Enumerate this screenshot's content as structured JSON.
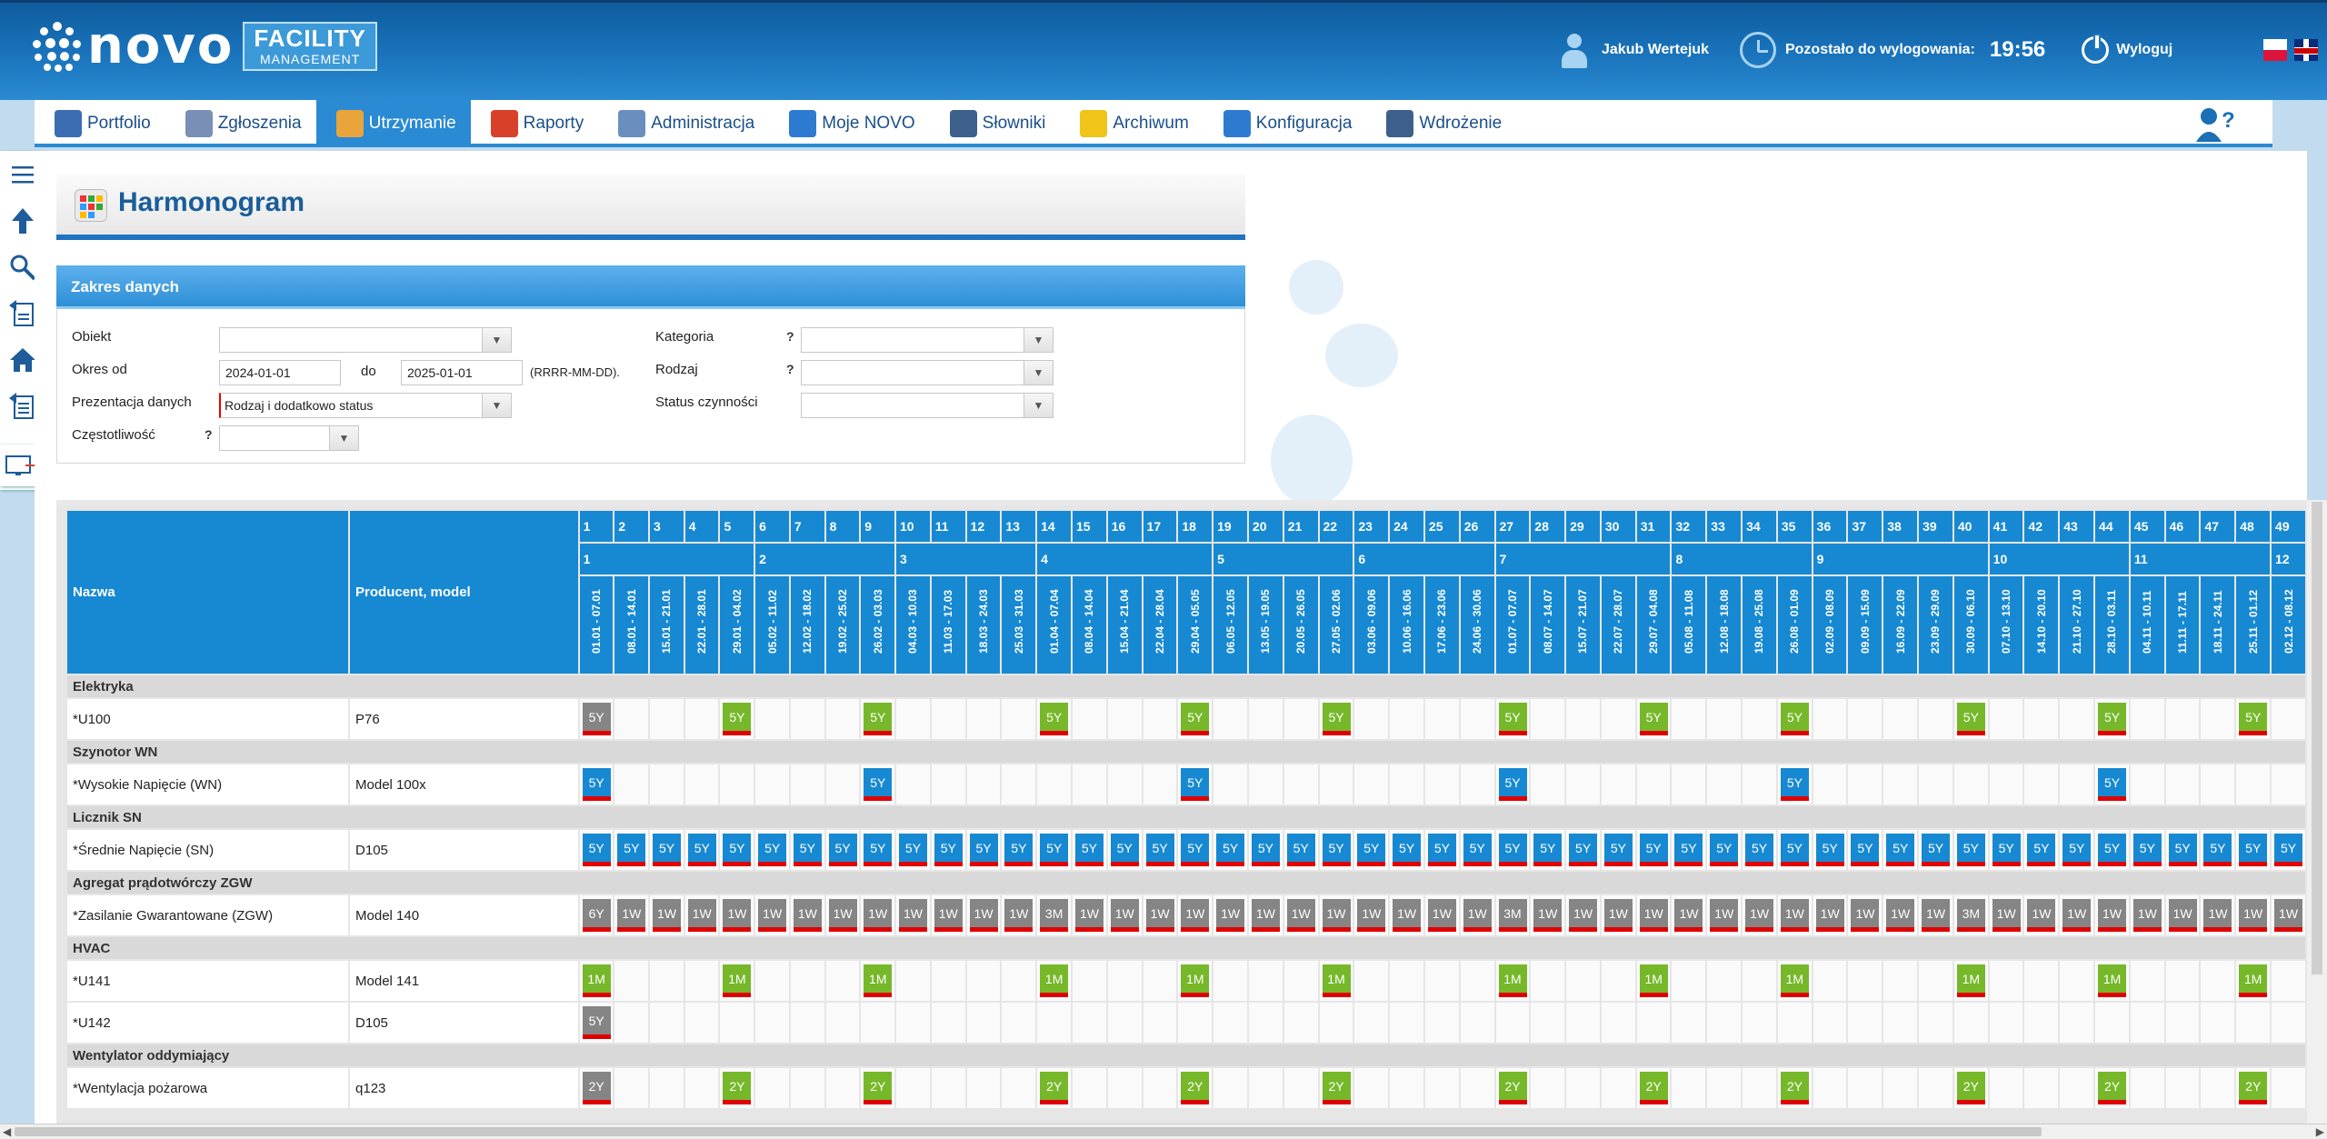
{
  "header": {
    "logo_text": "novo",
    "logo_badge_line1": "FACILITY",
    "logo_badge_line2": "MANAGEMENT",
    "user_name": "Jakub Wertejuk",
    "session_label": "Pozostało do wylogowania:",
    "session_time": "19:56",
    "logout_label": "Wyloguj"
  },
  "nav": {
    "items": [
      {
        "label": "Portfolio",
        "icon": "building-icon",
        "color": "#3b6db3"
      },
      {
        "label": "Zgłoszenia",
        "icon": "report-form-icon",
        "color": "#7a8fb5"
      },
      {
        "label": "Utrzymanie",
        "icon": "maintenance-icon",
        "color": "#e9a43b"
      },
      {
        "label": "Raporty",
        "icon": "pie-chart-icon",
        "color": "#d9402a"
      },
      {
        "label": "Administracja",
        "icon": "admin-user-icon",
        "color": "#6a8fbf"
      },
      {
        "label": "Moje NOVO",
        "icon": "gears-icon",
        "color": "#2d7bd1"
      },
      {
        "label": "Słowniki",
        "icon": "dictionary-search-icon",
        "color": "#3d5f8c"
      },
      {
        "label": "Archiwum",
        "icon": "folder-icon",
        "color": "#f0c419"
      },
      {
        "label": "Konfiguracja",
        "icon": "gears-icon",
        "color": "#2d7bd1"
      },
      {
        "label": "Wdrożenie",
        "icon": "checklist-icon",
        "color": "#3d5f8c"
      }
    ],
    "active_index": 2
  },
  "page": {
    "title": "Harmonogram"
  },
  "filters": {
    "section_title": "Zakres danych",
    "obiekt_label": "Obiekt",
    "obiekt_value": "",
    "okres_label": "Okres od",
    "okres_from": "2024-01-01",
    "do_label": "do",
    "okres_to": "2025-01-01",
    "date_format_hint": "(RRRR-MM-DD).",
    "prezentacja_label": "Prezentacja danych",
    "prezentacja_value": "Rodzaj i dodatkowo status",
    "czestotliwosc_label": "Częstotliwość",
    "kategoria_label": "Kategoria",
    "kategoria_value": "",
    "rodzaj_label": "Rodzaj",
    "rodzaj_value": "",
    "status_label": "Status czynności",
    "status_value": "",
    "czestotliwosc_value": "",
    "question_mark": "?"
  },
  "schedule": {
    "col_name": "Nazwa",
    "col_model": "Producent, model",
    "weeks": [
      "1",
      "2",
      "3",
      "4",
      "5",
      "6",
      "7",
      "8",
      "9",
      "10",
      "11",
      "12",
      "13",
      "14",
      "15",
      "16",
      "17",
      "18",
      "19",
      "20",
      "21",
      "22",
      "23",
      "24",
      "25",
      "26",
      "27",
      "28",
      "29",
      "30",
      "31",
      "32",
      "33",
      "34",
      "35",
      "36",
      "37",
      "38",
      "39",
      "40",
      "41",
      "42",
      "43",
      "44",
      "45",
      "46",
      "47",
      "48",
      "49"
    ],
    "months": [
      {
        "label": "1",
        "span": 5
      },
      {
        "label": "2",
        "span": 4
      },
      {
        "label": "3",
        "span": 4
      },
      {
        "label": "4",
        "span": 5
      },
      {
        "label": "5",
        "span": 4
      },
      {
        "label": "6",
        "span": 4
      },
      {
        "label": "7",
        "span": 5
      },
      {
        "label": "8",
        "span": 4
      },
      {
        "label": "9",
        "span": 5
      },
      {
        "label": "10",
        "span": 4
      },
      {
        "label": "11",
        "span": 4
      },
      {
        "label": "12",
        "span": 1
      }
    ],
    "dates": [
      "01.01 - 07.01",
      "08.01 - 14.01",
      "15.01 - 21.01",
      "22.01 - 28.01",
      "29.01 - 04.02",
      "05.02 - 11.02",
      "12.02 - 18.02",
      "19.02 - 25.02",
      "26.02 - 03.03",
      "04.03 - 10.03",
      "11.03 - 17.03",
      "18.03 - 24.03",
      "25.03 - 31.03",
      "01.04 - 07.04",
      "08.04 - 14.04",
      "15.04 - 21.04",
      "22.04 - 28.04",
      "29.04 - 05.05",
      "06.05 - 12.05",
      "13.05 - 19.05",
      "20.05 - 26.05",
      "27.05 - 02.06",
      "03.06 - 09.06",
      "10.06 - 16.06",
      "17.06 - 23.06",
      "24.06 - 30.06",
      "01.07 - 07.07",
      "08.07 - 14.07",
      "15.07 - 21.07",
      "22.07 - 28.07",
      "29.07 - 04.08",
      "05.08 - 11.08",
      "12.08 - 18.08",
      "19.08 - 25.08",
      "26.08 - 01.09",
      "02.09 - 08.09",
      "09.09 - 15.09",
      "16.09 - 22.09",
      "23.09 - 29.09",
      "30.09 - 06.10",
      "07.10 - 13.10",
      "14.10 - 20.10",
      "21.10 - 27.10",
      "28.10 - 03.11",
      "04.11 - 10.11",
      "11.11 - 17.11",
      "18.11 - 24.11",
      "25.11 - 01.12",
      "02.12 - 08.12"
    ],
    "colors": {
      "gray": "#858585",
      "green": "#76b82a",
      "blue": "#1789d3"
    },
    "groups": [
      {
        "name": "Elektryka",
        "rows": [
          {
            "name": "*U100",
            "model": "P76",
            "cells": {
              "1": [
                "5Y",
                "gray"
              ],
              "5": [
                "5Y",
                "green"
              ],
              "9": [
                "5Y",
                "green"
              ],
              "14": [
                "5Y",
                "green"
              ],
              "18": [
                "5Y",
                "green"
              ],
              "22": [
                "5Y",
                "green"
              ],
              "27": [
                "5Y",
                "green"
              ],
              "31": [
                "5Y",
                "green"
              ],
              "35": [
                "5Y",
                "green"
              ],
              "40": [
                "5Y",
                "green"
              ],
              "44": [
                "5Y",
                "green"
              ],
              "48": [
                "5Y",
                "green"
              ]
            }
          }
        ]
      },
      {
        "name": "Szynotor WN",
        "rows": [
          {
            "name": "*Wysokie Napięcie (WN)",
            "model": "Model 100x",
            "cells": {
              "1": [
                "5Y",
                "blue"
              ],
              "9": [
                "5Y",
                "blue"
              ],
              "18": [
                "5Y",
                "blue"
              ],
              "27": [
                "5Y",
                "blue"
              ],
              "35": [
                "5Y",
                "blue"
              ],
              "44": [
                "5Y",
                "blue"
              ]
            }
          }
        ]
      },
      {
        "name": "Licznik SN",
        "rows": [
          {
            "name": "*Średnie Napięcie (SN)",
            "model": "D105",
            "fill": [
              "5Y",
              "blue"
            ]
          }
        ]
      },
      {
        "name": "Agregat prądotwórczy ZGW",
        "rows": [
          {
            "name": "*Zasilanie Gwarantowane (ZGW)",
            "model": "Model 140",
            "fill": [
              "1W",
              "gray"
            ],
            "cells": {
              "1": [
                "6Y",
                "gray"
              ],
              "14": [
                "3M",
                "gray"
              ],
              "27": [
                "3M",
                "gray"
              ],
              "40": [
                "3M",
                "gray"
              ]
            }
          }
        ]
      },
      {
        "name": "HVAC",
        "rows": [
          {
            "name": "*U141",
            "model": "Model 141",
            "cells": {
              "1": [
                "1M",
                "green"
              ],
              "5": [
                "1M",
                "green"
              ],
              "9": [
                "1M",
                "green"
              ],
              "14": [
                "1M",
                "green"
              ],
              "18": [
                "1M",
                "green"
              ],
              "22": [
                "1M",
                "green"
              ],
              "27": [
                "1M",
                "green"
              ],
              "31": [
                "1M",
                "green"
              ],
              "35": [
                "1M",
                "green"
              ],
              "40": [
                "1M",
                "green"
              ],
              "44": [
                "1M",
                "green"
              ],
              "48": [
                "1M",
                "green"
              ]
            }
          },
          {
            "name": "*U142",
            "model": "D105",
            "cells": {
              "1": [
                "5Y",
                "gray"
              ]
            }
          }
        ]
      },
      {
        "name": "Wentylator oddymiający",
        "rows": [
          {
            "name": "*Wentylacja pożarowa",
            "model": "q123",
            "cells": {
              "1": [
                "2Y",
                "gray"
              ],
              "5": [
                "2Y",
                "green"
              ],
              "9": [
                "2Y",
                "green"
              ],
              "14": [
                "2Y",
                "green"
              ],
              "18": [
                "2Y",
                "green"
              ],
              "22": [
                "2Y",
                "green"
              ],
              "27": [
                "2Y",
                "green"
              ],
              "31": [
                "2Y",
                "green"
              ],
              "35": [
                "2Y",
                "green"
              ],
              "40": [
                "2Y",
                "green"
              ],
              "44": [
                "2Y",
                "green"
              ],
              "48": [
                "2Y",
                "green"
              ]
            }
          }
        ]
      }
    ]
  }
}
